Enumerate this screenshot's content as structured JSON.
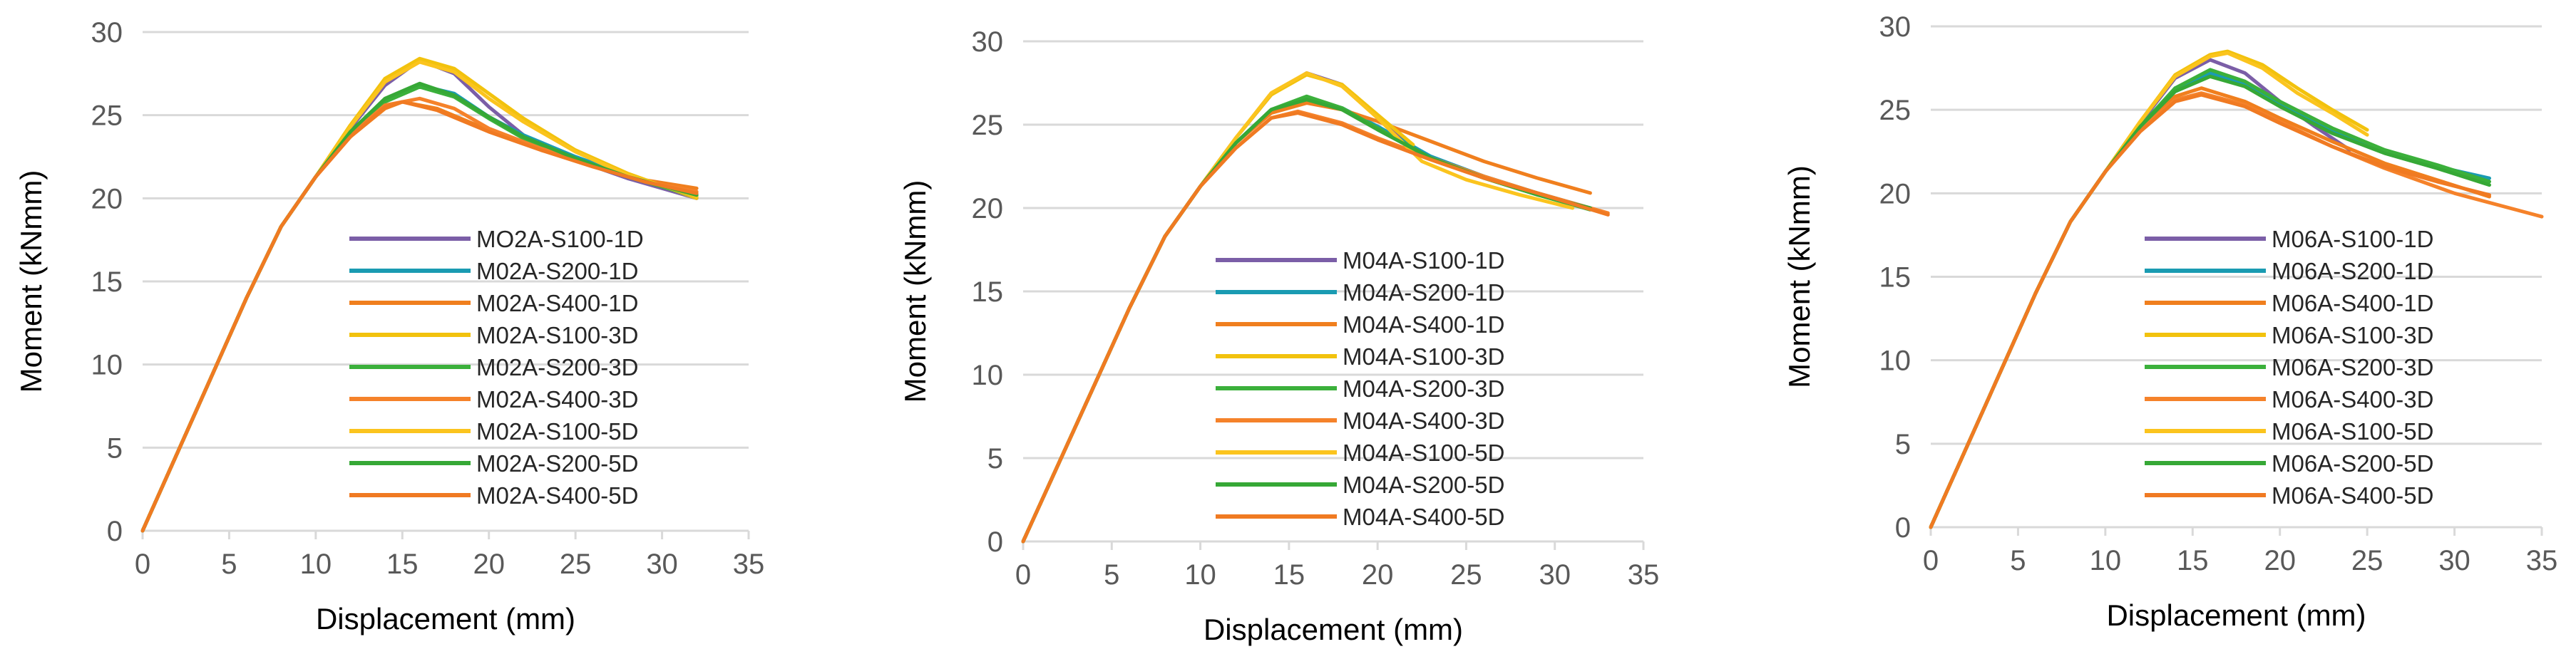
{
  "colors": {
    "S100-1D": "#7b5ea7",
    "S200-1D": "#1a9bb2",
    "S400-1D": "#f07f1e",
    "S100-3D": "#f2c20d",
    "S200-3D": "#3bb03b",
    "S400-3D": "#f5822a",
    "S100-5D": "#fbc41e",
    "S200-5D": "#36a836",
    "S400-5D": "#f07a22",
    "grid": "#d9d9d9"
  },
  "chart_data": [
    {
      "type": "line",
      "xlabel": "Displacement (mm)",
      "ylabel": "Moment (kNmm)",
      "xlim": [
        0,
        35
      ],
      "ylim": [
        0,
        30
      ],
      "xticks": [
        "0",
        "5",
        "10",
        "15",
        "20",
        "25",
        "30",
        "35"
      ],
      "yticks": [
        "0",
        "5",
        "10",
        "15",
        "20",
        "25",
        "30"
      ],
      "legend_position": "center-right",
      "series": [
        {
          "name": "MO2A-S100-1D",
          "key": "S100-1D",
          "x": [
            0,
            3,
            6,
            8,
            10,
            12,
            14,
            16,
            18,
            20,
            22,
            25,
            28,
            32
          ],
          "y": [
            0,
            7,
            14,
            18.3,
            21.3,
            24.2,
            26.8,
            28.3,
            27.5,
            25.5,
            23.8,
            22.3,
            21.2,
            20.0
          ]
        },
        {
          "name": "M02A-S200-1D",
          "key": "S200-1D",
          "x": [
            0,
            3,
            6,
            8,
            10,
            12,
            14,
            16,
            18,
            20,
            22,
            25,
            28,
            32
          ],
          "y": [
            0,
            7,
            14,
            18.3,
            21.3,
            23.9,
            25.9,
            26.8,
            26.3,
            24.9,
            23.8,
            22.5,
            21.4,
            20.2
          ]
        },
        {
          "name": "M02A-S400-1D",
          "key": "S400-1D",
          "x": [
            0,
            3,
            6,
            8,
            10,
            12,
            14,
            15,
            17,
            20,
            23,
            26,
            29,
            32
          ],
          "y": [
            0,
            7,
            14,
            18.3,
            21.3,
            23.7,
            25.4,
            25.8,
            25.4,
            24.1,
            23.0,
            22.0,
            21.1,
            20.6
          ]
        },
        {
          "name": "M02A-S100-3D",
          "key": "S100-3D",
          "x": [
            0,
            3,
            6,
            8,
            10,
            12,
            14,
            16,
            18,
            20,
            22,
            25,
            28,
            32
          ],
          "y": [
            0,
            7,
            14,
            18.3,
            21.3,
            24.4,
            27.2,
            28.4,
            27.8,
            26.3,
            24.8,
            22.9,
            21.5,
            20.0
          ]
        },
        {
          "name": "M02A-S200-3D",
          "key": "S200-3D",
          "x": [
            0,
            3,
            6,
            8,
            10,
            12,
            14,
            16,
            18,
            20,
            22,
            25,
            28,
            32
          ],
          "y": [
            0,
            7,
            14,
            18.3,
            21.3,
            23.9,
            25.8,
            26.7,
            26.1,
            24.8,
            23.6,
            22.4,
            21.3,
            20.1
          ]
        },
        {
          "name": "M02A-S400-3D",
          "key": "S400-3D",
          "x": [
            0,
            3,
            6,
            8,
            10,
            12,
            14,
            16,
            18,
            20,
            23,
            26,
            29,
            32
          ],
          "y": [
            0,
            7,
            14,
            18.3,
            21.3,
            23.8,
            25.6,
            26.0,
            25.4,
            24.2,
            23.0,
            22.0,
            21.0,
            20.4
          ]
        },
        {
          "name": "M02A-S100-5D",
          "key": "S100-5D",
          "x": [
            0,
            3,
            6,
            8,
            10,
            12,
            14,
            16,
            18,
            20,
            22,
            25,
            28,
            32
          ],
          "y": [
            0,
            7,
            14,
            18.3,
            21.3,
            24.3,
            27.0,
            28.2,
            27.6,
            26.0,
            24.6,
            22.8,
            21.4,
            20.1
          ]
        },
        {
          "name": "M02A-S200-5D",
          "key": "S200-5D",
          "x": [
            0,
            3,
            6,
            8,
            10,
            12,
            14,
            16,
            18,
            20,
            22,
            25,
            28,
            32
          ],
          "y": [
            0,
            7,
            14,
            18.3,
            21.3,
            24.0,
            26.0,
            26.9,
            26.2,
            24.9,
            23.7,
            22.4,
            21.3,
            20.2
          ]
        },
        {
          "name": "M02A-S400-5D",
          "key": "S400-5D",
          "x": [
            0,
            3,
            6,
            8,
            10,
            12,
            14,
            15,
            17,
            20,
            23,
            26,
            29,
            32
          ],
          "y": [
            0,
            7,
            14,
            18.3,
            21.3,
            23.7,
            25.5,
            25.8,
            25.3,
            24.0,
            22.9,
            21.9,
            21.0,
            20.3
          ]
        }
      ]
    },
    {
      "type": "line",
      "xlabel": "Displacement (mm)",
      "ylabel": "Moment (kNmm)",
      "xlim": [
        0,
        35
      ],
      "ylim": [
        0,
        30
      ],
      "xticks": [
        "0",
        "5",
        "10",
        "15",
        "20",
        "25",
        "30",
        "35"
      ],
      "yticks": [
        "0",
        "5",
        "10",
        "15",
        "20",
        "25",
        "30"
      ],
      "legend_position": "center-right",
      "series": [
        {
          "name": "M04A-S100-1D",
          "key": "S100-1D",
          "x": [
            0,
            3,
            6,
            8,
            10,
            12,
            14,
            16,
            18,
            20,
            22
          ],
          "y": [
            0,
            7,
            14,
            18.3,
            21.3,
            24.2,
            26.8,
            28.1,
            27.4,
            25.4,
            23.6
          ]
        },
        {
          "name": "M04A-S200-1D",
          "key": "S200-1D",
          "x": [
            0,
            3,
            6,
            8,
            10,
            12,
            14,
            16,
            18,
            20,
            23,
            26,
            29,
            32
          ],
          "y": [
            0,
            7,
            14,
            18.3,
            21.3,
            23.9,
            25.9,
            26.6,
            26.0,
            24.9,
            23.1,
            21.9,
            20.9,
            20.0
          ]
        },
        {
          "name": "M04A-S400-1D",
          "key": "S400-1D",
          "x": [
            0,
            3,
            6,
            8,
            10,
            12,
            14,
            16,
            18,
            20,
            23,
            26,
            29,
            32
          ],
          "y": [
            0,
            7,
            14,
            18.3,
            21.3,
            23.9,
            25.7,
            26.3,
            25.9,
            25.2,
            24.0,
            22.8,
            21.8,
            20.9
          ]
        },
        {
          "name": "M04A-S100-3D",
          "key": "S100-3D",
          "x": [
            0,
            3,
            6,
            8,
            10,
            12,
            14,
            16,
            18,
            20,
            22
          ],
          "y": [
            0,
            7,
            14,
            18.3,
            21.3,
            24.2,
            26.8,
            28.0,
            27.4,
            25.6,
            23.8
          ]
        },
        {
          "name": "M04A-S200-3D",
          "key": "S200-3D",
          "x": [
            0,
            3,
            6,
            8,
            10,
            12,
            14,
            16,
            18,
            20,
            23,
            26,
            29,
            32
          ],
          "y": [
            0,
            7,
            14,
            18.3,
            21.3,
            23.9,
            25.9,
            26.7,
            26.0,
            24.8,
            23.0,
            21.8,
            20.8,
            19.9
          ]
        },
        {
          "name": "M04A-S400-3D",
          "key": "S400-3D",
          "x": [
            0,
            3,
            6,
            8,
            10,
            12,
            14,
            15.5,
            18,
            20,
            23,
            26,
            29,
            33
          ],
          "y": [
            0,
            7,
            14,
            18.3,
            21.3,
            23.6,
            25.4,
            25.8,
            25.1,
            24.2,
            23.0,
            21.9,
            20.9,
            19.7
          ]
        },
        {
          "name": "M04A-S100-5D",
          "key": "S100-5D",
          "x": [
            0,
            3,
            6,
            8,
            10,
            12,
            14,
            16,
            18,
            20,
            22.5,
            25,
            28,
            31
          ],
          "y": [
            0,
            7,
            14,
            18.3,
            21.3,
            24.2,
            26.9,
            28.1,
            27.3,
            25.4,
            22.8,
            21.7,
            20.8,
            20.0
          ]
        },
        {
          "name": "M04A-S200-5D",
          "key": "S200-5D",
          "x": [
            0,
            3,
            6,
            8,
            10,
            12,
            14,
            16,
            18,
            20,
            23,
            26,
            29,
            32
          ],
          "y": [
            0,
            7,
            14,
            18.3,
            21.3,
            23.9,
            25.9,
            26.5,
            25.9,
            24.7,
            23.0,
            21.8,
            20.8,
            20.0
          ]
        },
        {
          "name": "M04A-S400-5D",
          "key": "S400-5D",
          "x": [
            0,
            3,
            6,
            8,
            10,
            12,
            14,
            15.5,
            18,
            20,
            23,
            26,
            29,
            33
          ],
          "y": [
            0,
            7,
            14,
            18.3,
            21.3,
            23.6,
            25.4,
            25.7,
            25.0,
            24.1,
            22.9,
            21.8,
            20.9,
            19.6
          ]
        }
      ]
    },
    {
      "type": "line",
      "xlabel": "Displacement (mm)",
      "ylabel": "Moment (kNmm)",
      "xlim": [
        0,
        35
      ],
      "ylim": [
        0,
        30
      ],
      "xticks": [
        "0",
        "5",
        "10",
        "15",
        "20",
        "25",
        "30",
        "35"
      ],
      "yticks": [
        "0",
        "5",
        "10",
        "15",
        "20",
        "25",
        "30"
      ],
      "legend_position": "center-right",
      "series": [
        {
          "name": "M06A-S100-1D",
          "key": "S100-1D",
          "x": [
            0,
            3,
            6,
            8,
            10,
            12,
            14,
            16,
            18,
            20,
            22,
            24
          ],
          "y": [
            0,
            7,
            14,
            18.3,
            21.3,
            24.2,
            26.9,
            28.0,
            27.2,
            25.5,
            24.0,
            22.6
          ]
        },
        {
          "name": "M06A-S200-1D",
          "key": "S200-1D",
          "x": [
            0,
            3,
            6,
            8,
            10,
            12,
            14,
            16,
            18,
            20,
            23,
            26,
            29,
            32
          ],
          "y": [
            0,
            7,
            14,
            18.3,
            21.3,
            24.0,
            26.3,
            27.2,
            26.6,
            25.4,
            23.8,
            22.5,
            21.6,
            20.9
          ]
        },
        {
          "name": "M06A-S400-1D",
          "key": "S400-1D",
          "x": [
            0,
            3,
            6,
            8,
            10,
            12,
            14,
            15.5,
            18,
            20,
            23,
            26,
            29,
            32
          ],
          "y": [
            0,
            7,
            14,
            18.3,
            21.3,
            23.8,
            25.8,
            26.3,
            25.5,
            24.5,
            23.1,
            21.8,
            20.8,
            19.8
          ]
        },
        {
          "name": "M06A-S100-3D",
          "key": "S100-3D",
          "x": [
            0,
            3,
            6,
            8,
            10,
            12,
            14,
            16,
            17,
            19,
            21,
            23,
            25
          ],
          "y": [
            0,
            7,
            14,
            18.3,
            21.3,
            24.3,
            27.1,
            28.3,
            28.5,
            27.7,
            26.3,
            25.0,
            23.8
          ]
        },
        {
          "name": "M06A-S200-3D",
          "key": "S200-3D",
          "x": [
            0,
            3,
            6,
            8,
            10,
            12,
            14,
            16,
            18,
            20,
            23,
            26,
            29,
            32
          ],
          "y": [
            0,
            7,
            14,
            18.3,
            21.3,
            24.0,
            26.3,
            27.4,
            26.7,
            25.5,
            23.9,
            22.6,
            21.7,
            20.7
          ]
        },
        {
          "name": "M06A-S400-3D",
          "key": "S400-3D",
          "x": [
            0,
            3,
            6,
            8,
            10,
            12,
            14,
            15.5,
            18,
            20,
            23,
            26,
            30,
            35
          ],
          "y": [
            0,
            7,
            14,
            18.3,
            21.3,
            23.8,
            25.6,
            26.0,
            25.3,
            24.3,
            22.8,
            21.5,
            20.0,
            18.6
          ]
        },
        {
          "name": "M06A-S100-5D",
          "key": "S100-5D",
          "x": [
            0,
            3,
            6,
            8,
            10,
            12,
            14,
            16,
            17,
            19,
            21,
            23,
            25
          ],
          "y": [
            0,
            7,
            14,
            18.3,
            21.3,
            24.3,
            27.0,
            28.2,
            28.4,
            27.5,
            26.0,
            24.8,
            23.5
          ]
        },
        {
          "name": "M06A-S200-5D",
          "key": "S200-5D",
          "x": [
            0,
            3,
            6,
            8,
            10,
            12,
            14,
            16,
            18,
            20,
            23,
            26,
            29,
            32
          ],
          "y": [
            0,
            7,
            14,
            18.3,
            21.3,
            24.0,
            26.1,
            27.0,
            26.4,
            25.2,
            23.6,
            22.4,
            21.5,
            20.5
          ]
        },
        {
          "name": "M06A-S400-5D",
          "key": "S400-5D",
          "x": [
            0,
            3,
            6,
            8,
            10,
            12,
            14,
            15.5,
            18,
            20,
            23,
            26,
            29,
            32
          ],
          "y": [
            0,
            7,
            14,
            18.3,
            21.3,
            23.7,
            25.5,
            25.9,
            25.2,
            24.2,
            22.8,
            21.6,
            20.7,
            19.9
          ]
        }
      ]
    }
  ]
}
